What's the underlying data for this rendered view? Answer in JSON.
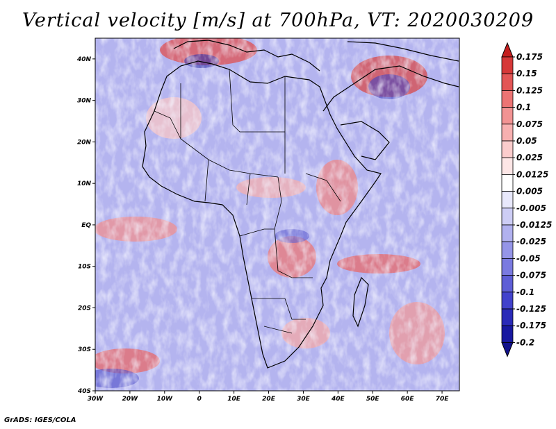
{
  "title": "Vertical velocity [m/s] at 700hPa, VT: 2020030209",
  "footer": "GrADS: IGES/COLA",
  "map": {
    "lat_range": [
      -40,
      45
    ],
    "lon_range": [
      -30,
      75
    ],
    "lat_ticks": [
      "40N",
      "30N",
      "20N",
      "10N",
      "EQ",
      "10S",
      "20S",
      "30S",
      "40S"
    ],
    "lon_ticks": [
      "30W",
      "20W",
      "10W",
      "0",
      "10E",
      "20E",
      "30E",
      "40E",
      "50E",
      "60E",
      "70E"
    ]
  },
  "colorbar": {
    "levels": [
      "0.175",
      "0.15",
      "0.125",
      "0.1",
      "0.075",
      "0.05",
      "0.025",
      "0.0125",
      "0.005",
      "-0.005",
      "-0.0125",
      "-0.025",
      "-0.05",
      "-0.075",
      "-0.1",
      "-0.125",
      "-0.175",
      "-0.2"
    ],
    "colors": [
      "#c41e1e",
      "#d63838",
      "#e35656",
      "#ec7474",
      "#f29393",
      "#f7b0b0",
      "#fbcccc",
      "#fde6e6",
      "#ffffff",
      "#e8e8fb",
      "#cdcdf5",
      "#b1b1ef",
      "#9595e8",
      "#7a7ae0",
      "#5e5ed6",
      "#4242cc",
      "#2a2ab8",
      "#1818a0",
      "#10108a"
    ]
  }
}
